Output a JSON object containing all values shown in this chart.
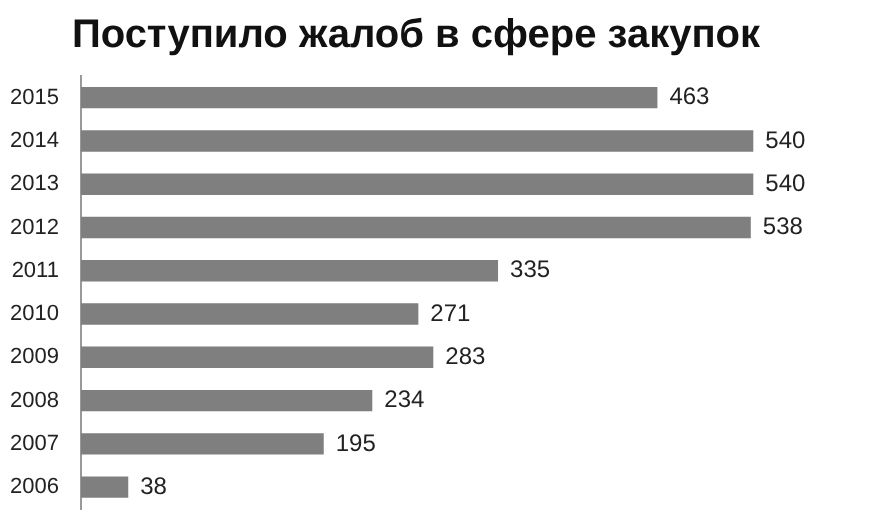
{
  "chart_data": {
    "type": "bar",
    "orientation": "horizontal",
    "title": "Поступило жалоб в сфере закупок",
    "categories": [
      "2015",
      "2014",
      "2013",
      "2012",
      "2011",
      "2010",
      "2009",
      "2008",
      "2007",
      "2006"
    ],
    "values": [
      463,
      540,
      540,
      538,
      335,
      271,
      283,
      234,
      195,
      38
    ],
    "color": "#7f7f7f",
    "data_labels": true,
    "legend": false
  }
}
